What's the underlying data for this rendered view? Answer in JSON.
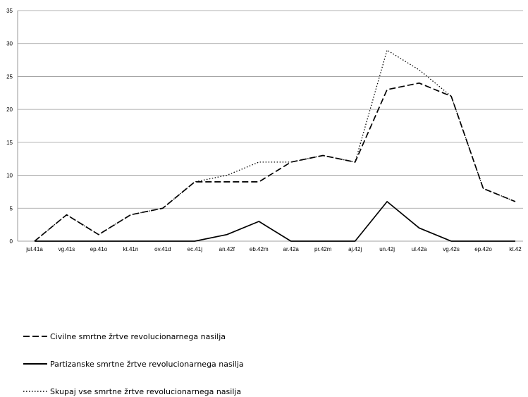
{
  "chart_data": {
    "type": "line",
    "title": "",
    "xlabel": "",
    "ylabel": "",
    "categories": [
      "jul.41a",
      "vg.41s",
      "ep.41o",
      "kt.41n",
      "ov.41d",
      "ec.41j",
      "an.42f",
      "eb.42m",
      "ar.42a",
      "pr.42m",
      "aj.42j",
      "un.42j",
      "ul.42a",
      "vg.42s",
      "ep.42o",
      "kt.42"
    ],
    "ylim": [
      0,
      35
    ],
    "yticks": [
      0,
      5,
      10,
      15,
      20,
      25,
      30,
      35
    ],
    "grid": "horizontal",
    "legend_position": "bottom",
    "series": [
      {
        "name": "Civilne smrtne žrtve revolucionarnega nasilja",
        "style": "dashed",
        "values": [
          0,
          4,
          1,
          4,
          5,
          9,
          9,
          9,
          12,
          13,
          12,
          23,
          24,
          22,
          8,
          6
        ]
      },
      {
        "name": "Partizanske smrtne žrtve revolucionarnega nasilja",
        "style": "solid",
        "values": [
          0,
          0,
          0,
          0,
          0,
          0,
          1,
          3,
          0,
          0,
          0,
          6,
          2,
          0,
          0,
          0
        ]
      },
      {
        "name": "Skupaj vse smrtne žrtve revolucionarnega nasilja",
        "style": "dotted",
        "values": [
          0,
          4,
          1,
          4,
          5,
          9,
          10,
          12,
          12,
          13,
          12,
          29,
          26,
          22,
          8,
          6
        ]
      }
    ]
  },
  "colors": {
    "grid": "#9a9a9a",
    "axis": "#808080",
    "line": "#000000"
  }
}
